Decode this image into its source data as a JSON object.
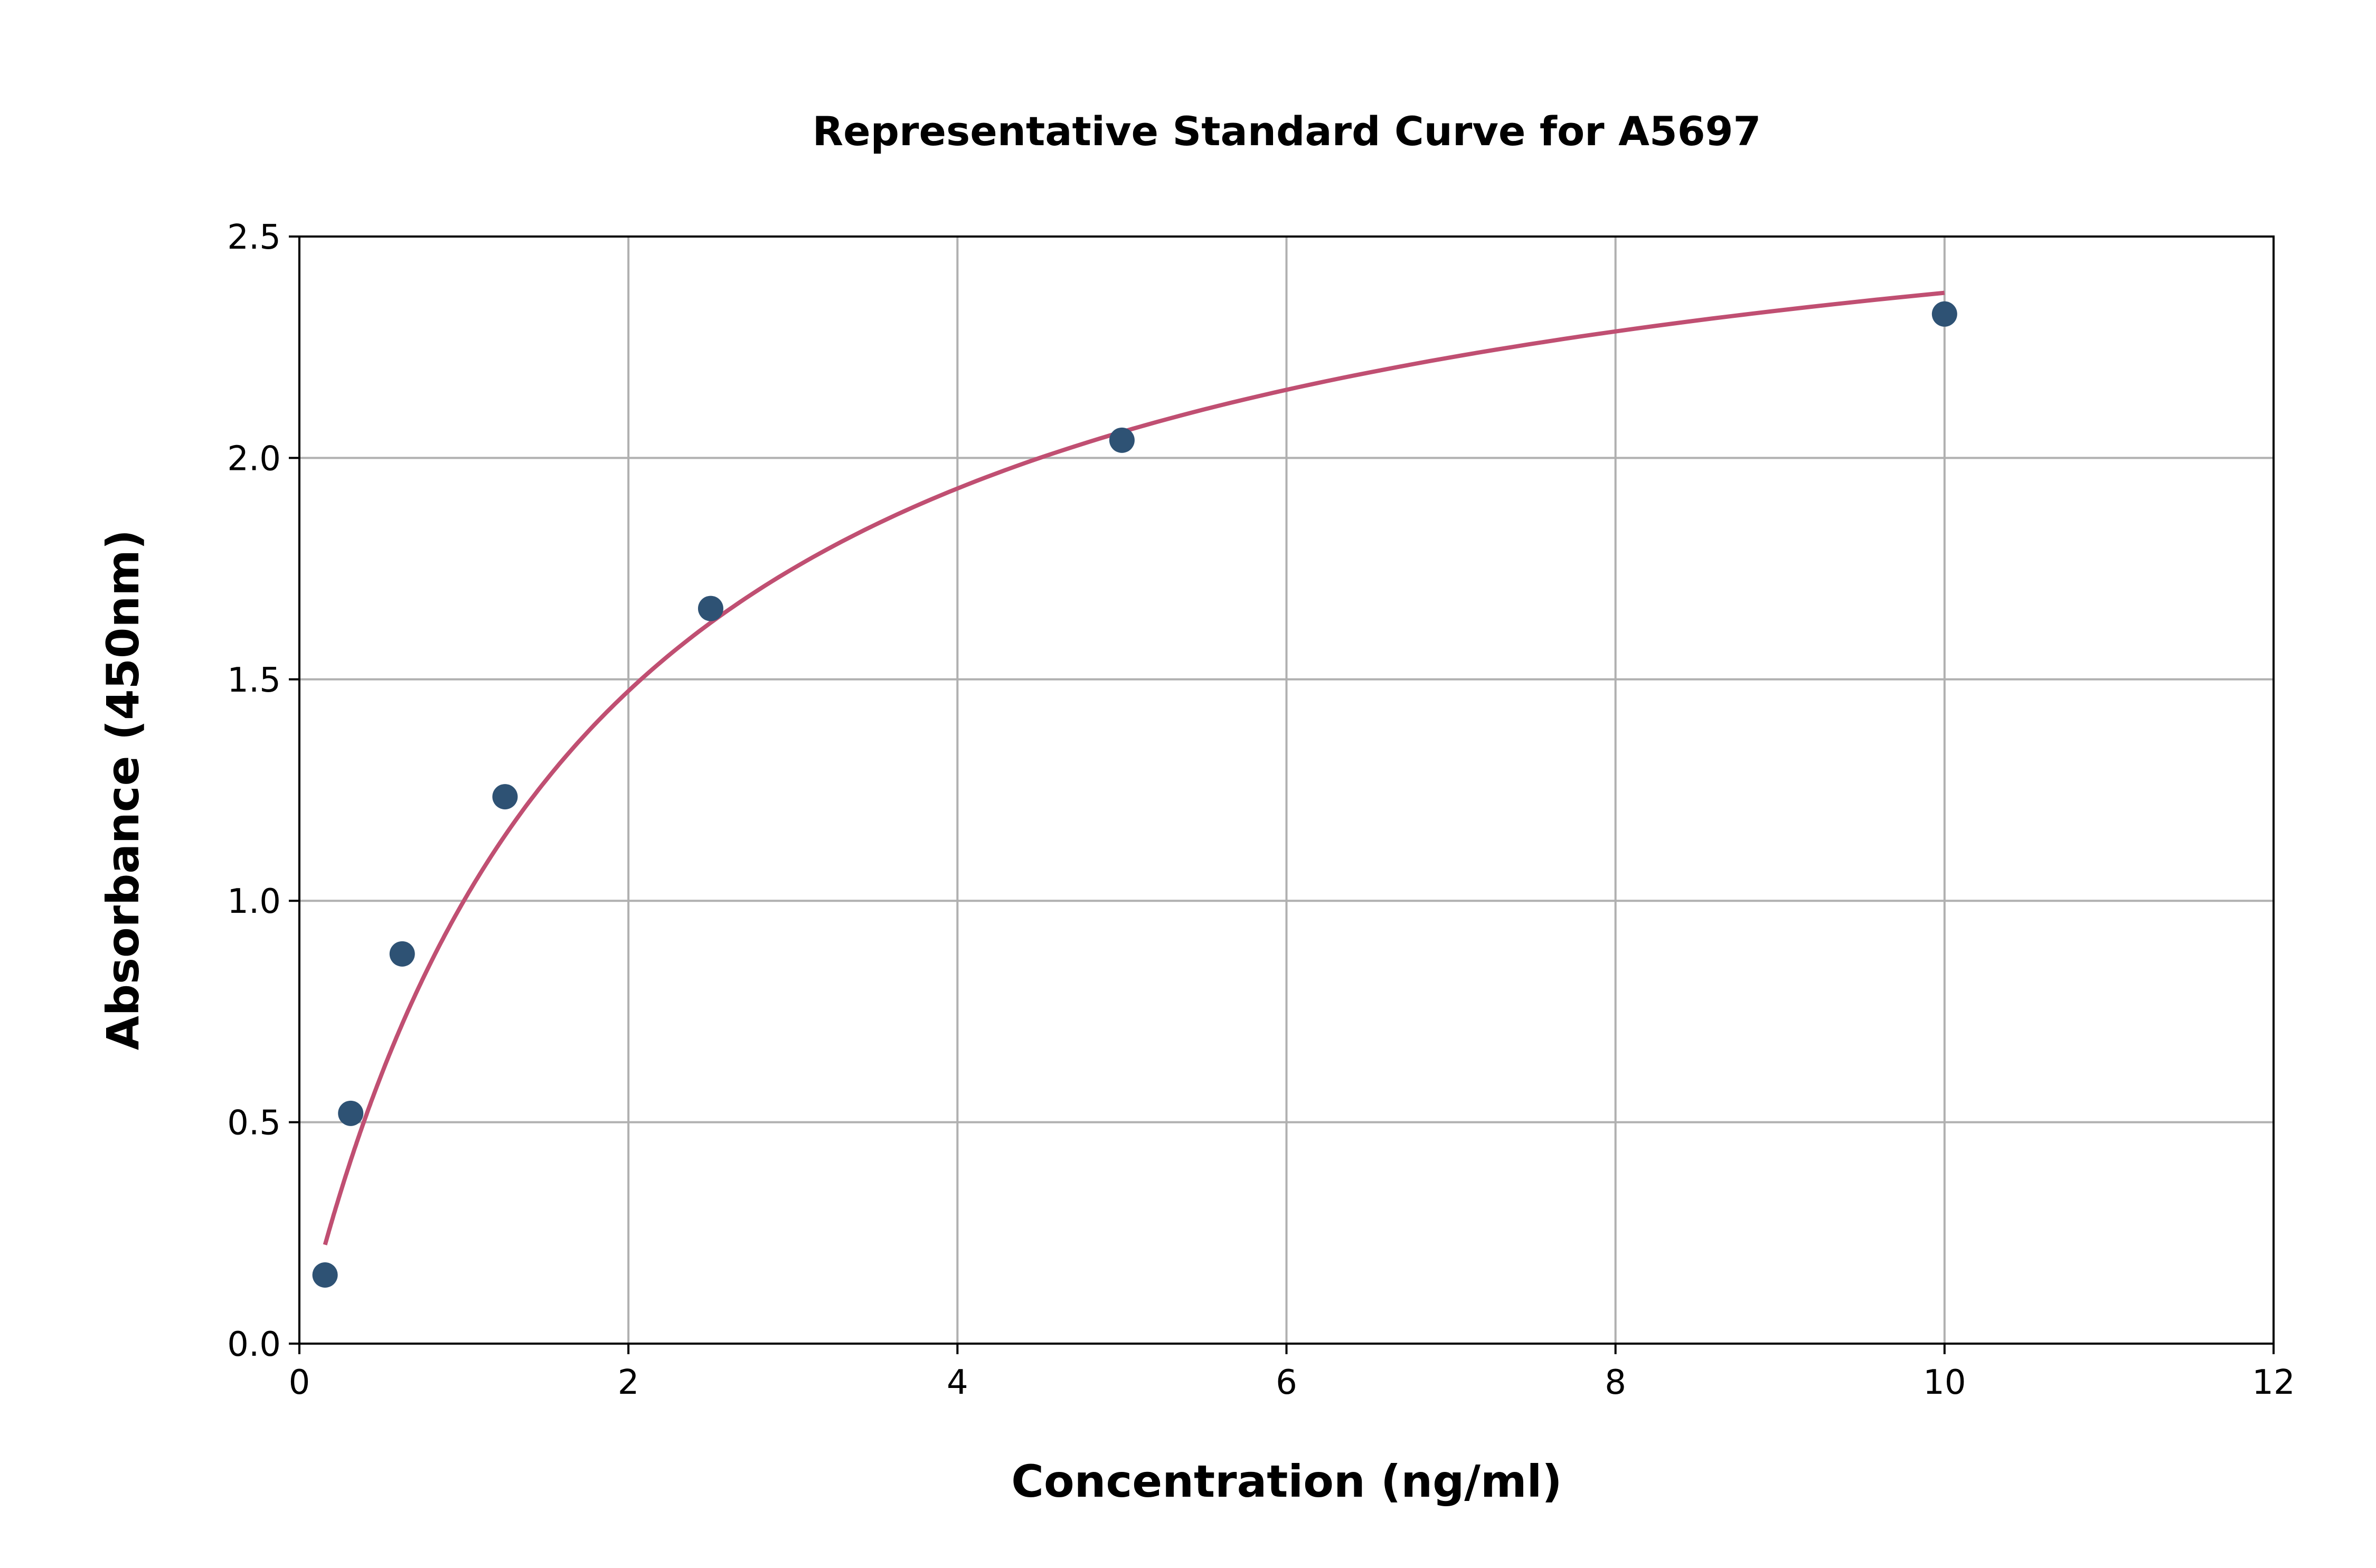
{
  "chart_data": {
    "type": "scatter",
    "title": "Representative Standard Curve for A5697",
    "xlabel": "Concentration (ng/ml)",
    "ylabel": "Absorbance (450nm)",
    "xlim": [
      0,
      12
    ],
    "ylim": [
      0,
      2.5
    ],
    "xticks": [
      "0",
      "2",
      "4",
      "6",
      "8",
      "10",
      "12"
    ],
    "yticks": [
      "0.0",
      "0.5",
      "1.0",
      "1.5",
      "2.0",
      "2.5"
    ],
    "grid": true,
    "legend": "none",
    "points": {
      "x": [
        0.156,
        0.312,
        0.625,
        1.25,
        2.5,
        5,
        10
      ],
      "y": [
        0.155,
        0.52,
        0.88,
        1.235,
        1.66,
        2.04,
        2.325
      ]
    },
    "fit_curve": "smooth fitted curve through standards",
    "colors": {
      "points": "#2e5274",
      "curve": "#c04f72",
      "grid": "#b0b0b0"
    }
  }
}
